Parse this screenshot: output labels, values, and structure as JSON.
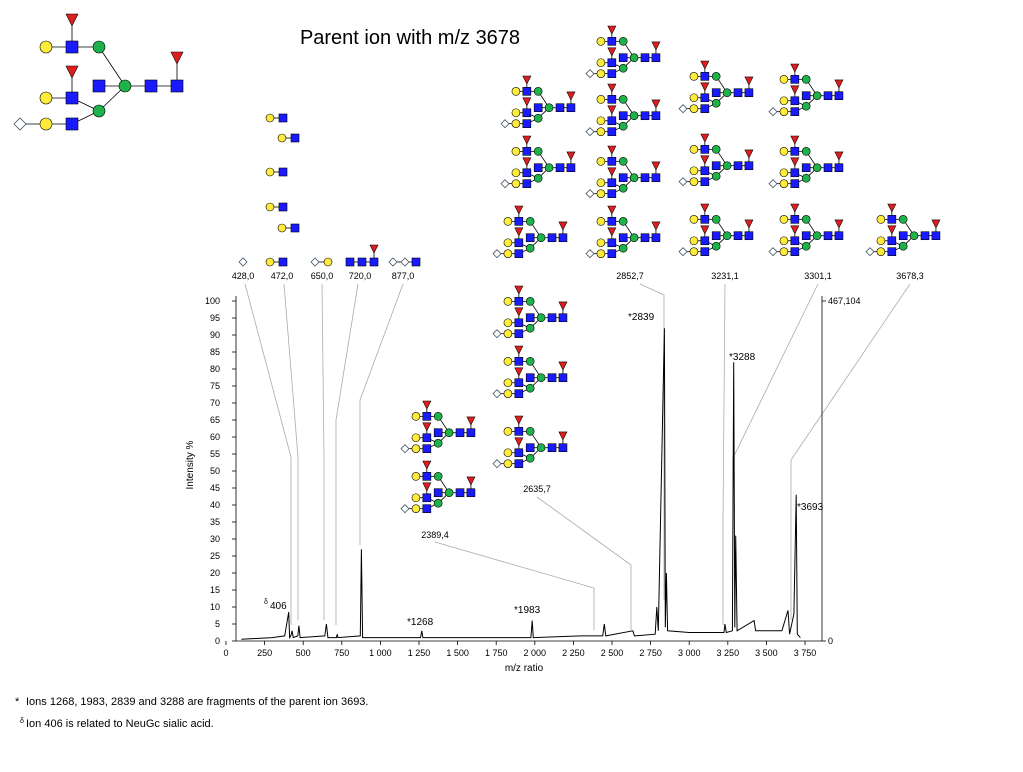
{
  "title": "Parent ion with m/z 3678",
  "chart_data": {
    "type": "line",
    "x_label": "m/z ratio",
    "y_label": "Intensity %",
    "color": "#000000",
    "x": [
      100,
      300,
      380,
      406,
      412,
      420,
      428,
      435,
      465,
      472,
      480,
      640,
      650,
      660,
      715,
      720,
      725,
      870,
      877,
      885,
      1000,
      1260,
      1268,
      1275,
      1500,
      1975,
      1983,
      1990,
      2300,
      2440,
      2450,
      2460,
      2635,
      2645,
      2780,
      2790,
      2800,
      2839,
      2845,
      2852,
      2860,
      3000,
      3225,
      3231,
      3240,
      3280,
      3288,
      3295,
      3301,
      3310,
      3420,
      3430,
      3600,
      3640,
      3650,
      3678,
      3693,
      3700,
      3720
    ],
    "values": [
      0.5,
      1,
      1.5,
      8.5,
      1,
      1.5,
      3,
      1,
      1.5,
      4.5,
      1,
      1.5,
      5,
      1,
      1,
      2,
      1,
      1.5,
      27,
      1,
      1,
      1,
      3,
      1,
      1,
      1,
      6,
      1,
      1.5,
      1.5,
      5,
      1.5,
      3,
      1.5,
      2,
      10,
      3,
      92,
      4,
      20,
      3,
      2.5,
      2.5,
      5,
      2.5,
      3,
      82,
      4,
      31,
      3,
      6,
      3,
      3,
      9,
      2,
      8,
      43,
      2,
      1
    ],
    "xlim": [
      0,
      3860
    ],
    "xticks": [
      0,
      250,
      500,
      750,
      {
        "value": 1000,
        "label": "1 000"
      },
      {
        "value": 1250,
        "label": "1 250"
      },
      {
        "value": 1500,
        "label": "1 500"
      },
      {
        "value": 1750,
        "label": "1 750"
      },
      {
        "value": 2000,
        "label": "2 000"
      },
      {
        "value": 2250,
        "label": "2 250"
      },
      {
        "value": 2500,
        "label": "2 500"
      },
      {
        "value": 2750,
        "label": "2 750"
      },
      {
        "value": 3000,
        "label": "3 000"
      },
      {
        "value": 3250,
        "label": "3 250"
      },
      {
        "value": 3500,
        "label": "3 500"
      },
      {
        "value": 3750,
        "label": "3 750"
      }
    ],
    "ylim": [
      0,
      100
    ],
    "yticks": [
      0,
      5,
      10,
      15,
      20,
      25,
      30,
      35,
      40,
      45,
      50,
      55,
      60,
      65,
      70,
      75,
      80,
      85,
      90,
      95,
      100
    ],
    "y2lim": [
      0,
      467.104
    ],
    "y2ticks": [
      0,
      {
        "value": 467.104,
        "label": "467,104"
      }
    ],
    "peak_labels": [
      "*2839",
      "*3288",
      "*3693",
      "*1983",
      "*1268",
      {
        "symbol": "δ",
        "text": "406"
      }
    ],
    "ion_labels": [
      "428,0",
      "472,0",
      "650,0",
      "720,0",
      "877,0",
      "2389,4",
      "2635,7",
      "2852,7",
      "3231,1",
      "3301,1",
      "3678,3"
    ]
  },
  "footnotes": [
    {
      "symbol": "*",
      "text": "Ions 1268, 1983, 2839 and 3288 are fragments of the parent ion 3693."
    },
    {
      "symbol": "δ",
      "text": "Ion 406 is related to NeuGc sialic acid."
    }
  ]
}
